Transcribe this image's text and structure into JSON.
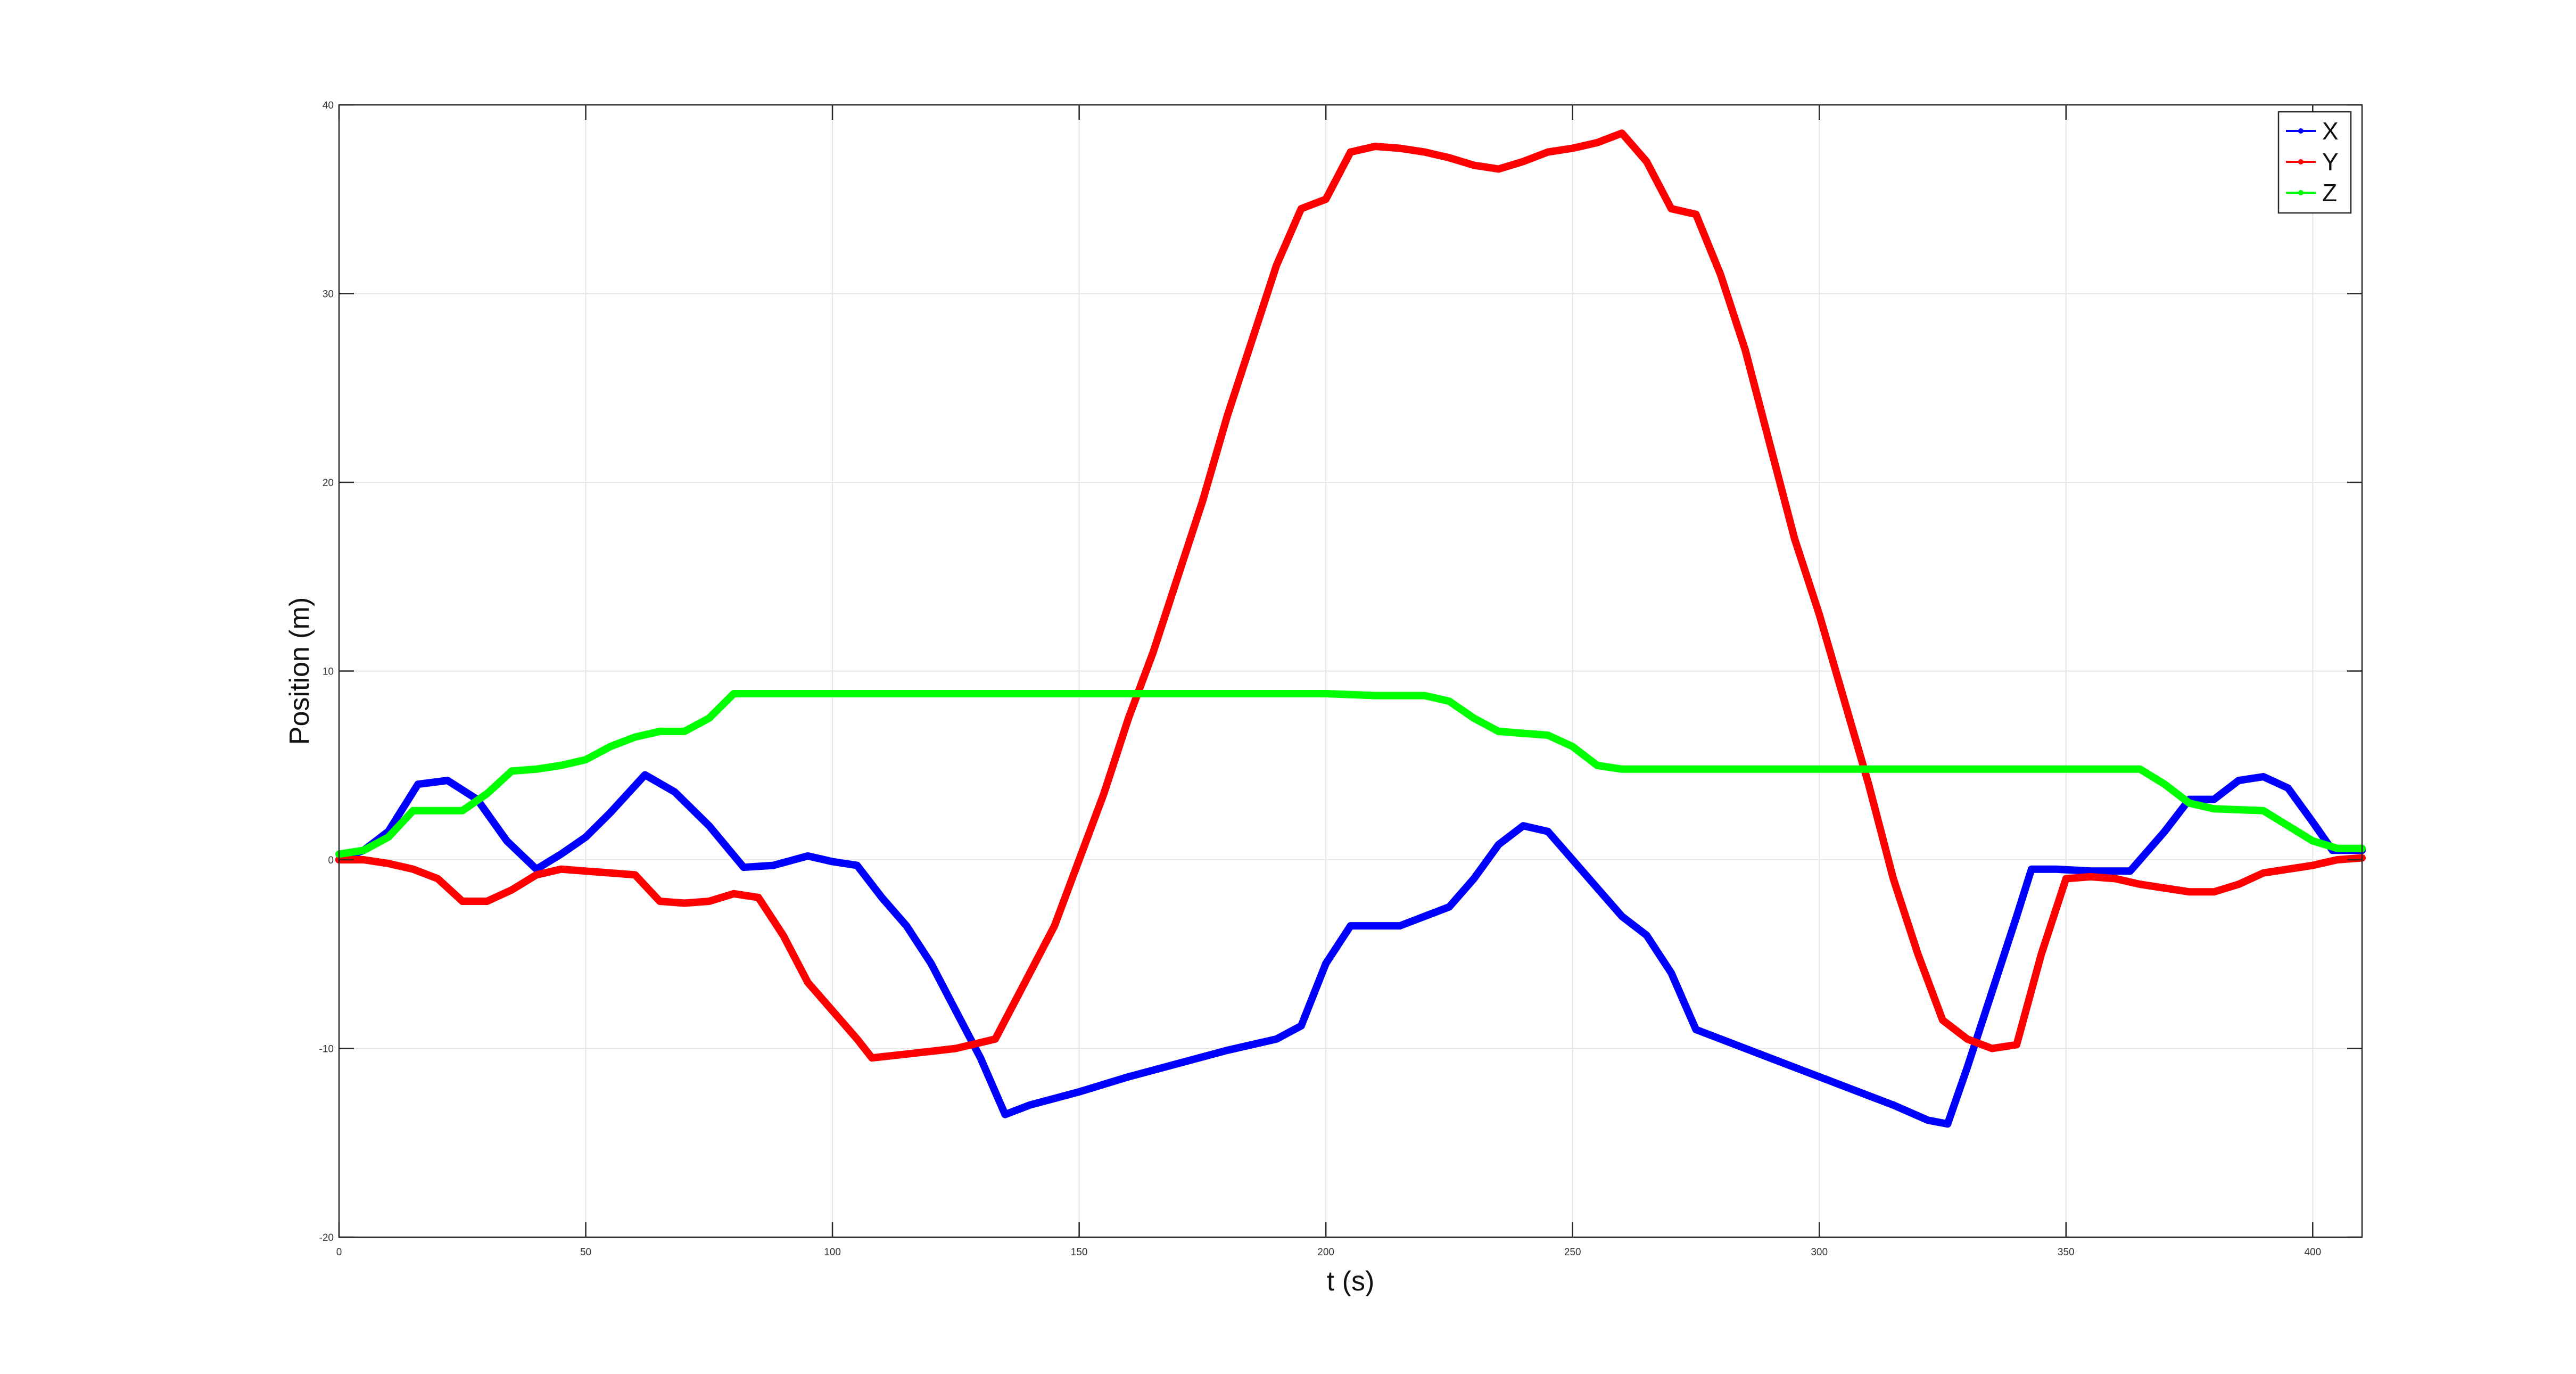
{
  "chart_data": {
    "type": "line",
    "title": "",
    "xlabel": "t (s)",
    "ylabel": "Position (m)",
    "xlim": [
      0,
      410
    ],
    "ylim": [
      -20,
      40
    ],
    "xticks": [
      0,
      50,
      100,
      150,
      200,
      250,
      300,
      350,
      400
    ],
    "yticks": [
      -20,
      -10,
      0,
      10,
      20,
      30,
      40
    ],
    "grid": true,
    "legend_position": "top-right",
    "series": [
      {
        "name": "X",
        "color": "#0000ff",
        "points": [
          [
            0,
            0
          ],
          [
            5,
            0.5
          ],
          [
            10,
            1.5
          ],
          [
            16,
            4
          ],
          [
            22,
            4.2
          ],
          [
            28,
            3.2
          ],
          [
            34,
            1
          ],
          [
            40,
            -0.5
          ],
          [
            45,
            0.3
          ],
          [
            50,
            1.2
          ],
          [
            55,
            2.5
          ],
          [
            62,
            4.5
          ],
          [
            68,
            3.6
          ],
          [
            75,
            1.8
          ],
          [
            82,
            -0.4
          ],
          [
            88,
            -0.3
          ],
          [
            95,
            0.2
          ],
          [
            100,
            -0.1
          ],
          [
            105,
            -0.3
          ],
          [
            110,
            -2
          ],
          [
            115,
            -3.5
          ],
          [
            120,
            -5.5
          ],
          [
            125,
            -8
          ],
          [
            130,
            -10.5
          ],
          [
            135,
            -13.5
          ],
          [
            140,
            -13
          ],
          [
            150,
            -12.3
          ],
          [
            160,
            -11.5
          ],
          [
            170,
            -10.8
          ],
          [
            180,
            -10.1
          ],
          [
            190,
            -9.5
          ],
          [
            195,
            -8.8
          ],
          [
            200,
            -5.5
          ],
          [
            205,
            -3.5
          ],
          [
            212,
            -3.5
          ],
          [
            215,
            -3.5
          ],
          [
            220,
            -3
          ],
          [
            225,
            -2.5
          ],
          [
            230,
            -1
          ],
          [
            235,
            0.8
          ],
          [
            240,
            1.8
          ],
          [
            245,
            1.5
          ],
          [
            250,
            0
          ],
          [
            255,
            -1.5
          ],
          [
            260,
            -3
          ],
          [
            265,
            -4
          ],
          [
            270,
            -6
          ],
          [
            275,
            -9
          ],
          [
            285,
            -10
          ],
          [
            295,
            -11
          ],
          [
            305,
            -12
          ],
          [
            315,
            -13
          ],
          [
            322,
            -13.8
          ],
          [
            326,
            -14
          ],
          [
            330,
            -11
          ],
          [
            335,
            -7
          ],
          [
            340,
            -3
          ],
          [
            343,
            -0.5
          ],
          [
            348,
            -0.5
          ],
          [
            355,
            -0.6
          ],
          [
            363,
            -0.6
          ],
          [
            370,
            1.5
          ],
          [
            375,
            3.2
          ],
          [
            380,
            3.2
          ],
          [
            385,
            4.2
          ],
          [
            390,
            4.4
          ],
          [
            395,
            3.8
          ],
          [
            400,
            2
          ],
          [
            404,
            0.5
          ],
          [
            410,
            0.5
          ]
        ]
      },
      {
        "name": "Y",
        "color": "#ff0000",
        "points": [
          [
            0,
            0
          ],
          [
            5,
            0
          ],
          [
            10,
            -0.2
          ],
          [
            15,
            -0.5
          ],
          [
            20,
            -1
          ],
          [
            25,
            -2.2
          ],
          [
            30,
            -2.2
          ],
          [
            35,
            -1.6
          ],
          [
            40,
            -0.8
          ],
          [
            45,
            -0.5
          ],
          [
            50,
            -0.6
          ],
          [
            55,
            -0.7
          ],
          [
            60,
            -0.8
          ],
          [
            65,
            -2.2
          ],
          [
            70,
            -2.3
          ],
          [
            75,
            -2.2
          ],
          [
            80,
            -1.8
          ],
          [
            85,
            -2
          ],
          [
            90,
            -4
          ],
          [
            95,
            -6.5
          ],
          [
            100,
            -8
          ],
          [
            105,
            -9.5
          ],
          [
            108,
            -10.5
          ],
          [
            115,
            -10.3
          ],
          [
            125,
            -10
          ],
          [
            133,
            -9.5
          ],
          [
            138,
            -7
          ],
          [
            145,
            -3.5
          ],
          [
            150,
            0
          ],
          [
            155,
            3.5
          ],
          [
            160,
            7.5
          ],
          [
            165,
            11
          ],
          [
            170,
            15
          ],
          [
            175,
            19
          ],
          [
            180,
            23.5
          ],
          [
            185,
            27.5
          ],
          [
            190,
            31.5
          ],
          [
            195,
            34.5
          ],
          [
            200,
            35
          ],
          [
            205,
            37.5
          ],
          [
            210,
            37.8
          ],
          [
            215,
            37.7
          ],
          [
            220,
            37.5
          ],
          [
            225,
            37.2
          ],
          [
            230,
            36.8
          ],
          [
            235,
            36.6
          ],
          [
            240,
            37
          ],
          [
            245,
            37.5
          ],
          [
            250,
            37.7
          ],
          [
            255,
            38
          ],
          [
            260,
            38.5
          ],
          [
            265,
            37
          ],
          [
            270,
            34.5
          ],
          [
            275,
            34.2
          ],
          [
            280,
            31
          ],
          [
            285,
            27
          ],
          [
            290,
            22
          ],
          [
            295,
            17
          ],
          [
            300,
            13
          ],
          [
            305,
            8.5
          ],
          [
            310,
            4
          ],
          [
            315,
            -1
          ],
          [
            320,
            -5
          ],
          [
            325,
            -8.5
          ],
          [
            330,
            -9.5
          ],
          [
            335,
            -10
          ],
          [
            340,
            -9.8
          ],
          [
            345,
            -5
          ],
          [
            350,
            -1
          ],
          [
            355,
            -0.9
          ],
          [
            360,
            -1
          ],
          [
            365,
            -1.3
          ],
          [
            370,
            -1.5
          ],
          [
            375,
            -1.7
          ],
          [
            380,
            -1.7
          ],
          [
            385,
            -1.3
          ],
          [
            390,
            -0.7
          ],
          [
            395,
            -0.5
          ],
          [
            400,
            -0.3
          ],
          [
            405,
            0
          ],
          [
            410,
            0.1
          ]
        ]
      },
      {
        "name": "Z",
        "color": "#00ff00",
        "points": [
          [
            0,
            0.3
          ],
          [
            5,
            0.5
          ],
          [
            10,
            1.2
          ],
          [
            15,
            2.6
          ],
          [
            20,
            2.6
          ],
          [
            25,
            2.6
          ],
          [
            30,
            3.5
          ],
          [
            35,
            4.7
          ],
          [
            40,
            4.8
          ],
          [
            45,
            5
          ],
          [
            50,
            5.3
          ],
          [
            55,
            6
          ],
          [
            60,
            6.5
          ],
          [
            65,
            6.8
          ],
          [
            70,
            6.8
          ],
          [
            75,
            7.5
          ],
          [
            80,
            8.8
          ],
          [
            90,
            8.8
          ],
          [
            100,
            8.8
          ],
          [
            150,
            8.8
          ],
          [
            200,
            8.8
          ],
          [
            210,
            8.7
          ],
          [
            220,
            8.7
          ],
          [
            225,
            8.4
          ],
          [
            230,
            7.5
          ],
          [
            235,
            6.8
          ],
          [
            240,
            6.7
          ],
          [
            245,
            6.6
          ],
          [
            250,
            6
          ],
          [
            255,
            5
          ],
          [
            260,
            4.8
          ],
          [
            300,
            4.8
          ],
          [
            350,
            4.8
          ],
          [
            365,
            4.8
          ],
          [
            370,
            4
          ],
          [
            375,
            3
          ],
          [
            380,
            2.7
          ],
          [
            390,
            2.6
          ],
          [
            395,
            1.8
          ],
          [
            400,
            1
          ],
          [
            405,
            0.6
          ],
          [
            410,
            0.6
          ]
        ]
      }
    ]
  }
}
